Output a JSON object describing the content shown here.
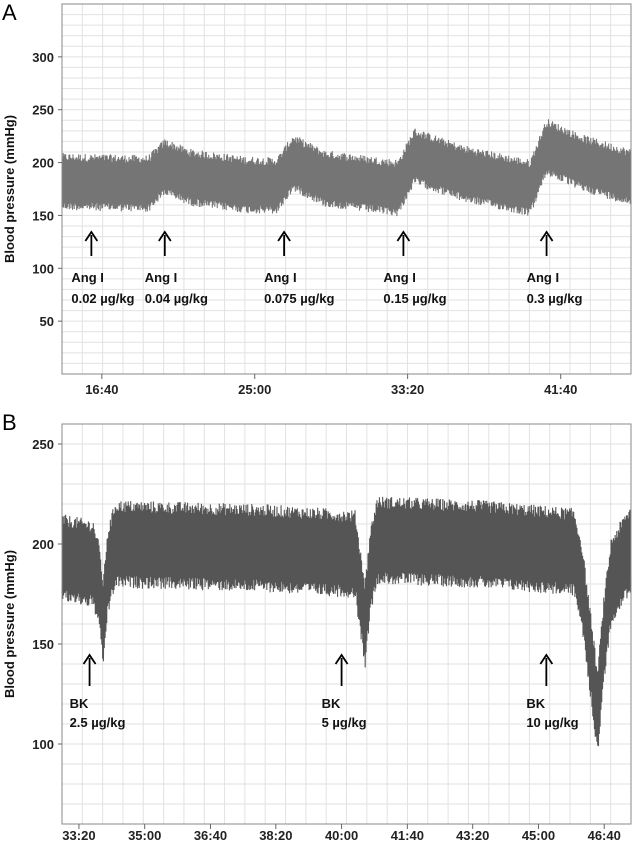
{
  "chart_data": [
    {
      "panel_label": "A",
      "type": "line",
      "ylabel": "Blood pressure  (mmHg)",
      "ylim": [
        0,
        350
      ],
      "yticks": [
        50,
        100,
        150,
        200,
        250,
        300
      ],
      "xlabels": [
        "16:40",
        "25:00",
        "33:20",
        "41:40"
      ],
      "xlabel_pos": [
        16.67,
        25.0,
        33.33,
        41.67
      ],
      "xlim": [
        14.5,
        45.5
      ],
      "grid": true,
      "series_color": "#757575",
      "baseline": [
        {
          "x": 14.5,
          "y": 182
        },
        {
          "x": 19.2,
          "y": 180
        },
        {
          "x": 20.1,
          "y": 196
        },
        {
          "x": 21.5,
          "y": 186
        },
        {
          "x": 24.5,
          "y": 179
        },
        {
          "x": 26.2,
          "y": 178
        },
        {
          "x": 27.1,
          "y": 200
        },
        {
          "x": 28.8,
          "y": 185
        },
        {
          "x": 32.8,
          "y": 176
        },
        {
          "x": 33.7,
          "y": 206
        },
        {
          "x": 36.3,
          "y": 190
        },
        {
          "x": 40.0,
          "y": 176
        },
        {
          "x": 40.9,
          "y": 215
        },
        {
          "x": 42.8,
          "y": 200
        },
        {
          "x": 45.5,
          "y": 186
        }
      ],
      "band_half_width": 27,
      "annotations": [
        {
          "x": 16.1,
          "label": "Ang I",
          "dose": "0.02 µg/kg"
        },
        {
          "x": 20.1,
          "label": "Ang I",
          "dose": "0.04 µg/kg"
        },
        {
          "x": 26.6,
          "label": "Ang I",
          "dose": "0.075 µg/kg"
        },
        {
          "x": 33.1,
          "label": "Ang I",
          "dose": "0.15 µg/kg"
        },
        {
          "x": 40.9,
          "label": "Ang I",
          "dose": "0.3 µg/kg"
        }
      ]
    },
    {
      "panel_label": "B",
      "type": "line",
      "ylabel": "Blood pressure  (mmHg)",
      "ylim": [
        60,
        260
      ],
      "yticks": [
        100,
        150,
        200,
        250
      ],
      "xlabels": [
        "33:20",
        "35:00",
        "36:40",
        "38:20",
        "40:00",
        "41:40",
        "43:20",
        "45:00",
        "46:40"
      ],
      "xlabel_pos": [
        33.33,
        35.0,
        36.67,
        38.33,
        40.0,
        41.67,
        43.33,
        45.0,
        46.67
      ],
      "xlim": [
        32.9,
        47.35
      ],
      "grid": true,
      "series_color": "#555555",
      "baseline": [
        {
          "x": 32.9,
          "y": 193
        },
        {
          "x": 33.7,
          "y": 190
        },
        {
          "x": 33.85,
          "y": 178
        },
        {
          "x": 33.95,
          "y": 160
        },
        {
          "x": 34.05,
          "y": 185
        },
        {
          "x": 34.25,
          "y": 200
        },
        {
          "x": 38.0,
          "y": 198
        },
        {
          "x": 40.35,
          "y": 195
        },
        {
          "x": 40.45,
          "y": 180
        },
        {
          "x": 40.6,
          "y": 160
        },
        {
          "x": 40.72,
          "y": 185
        },
        {
          "x": 40.9,
          "y": 202
        },
        {
          "x": 43.5,
          "y": 200
        },
        {
          "x": 45.9,
          "y": 196
        },
        {
          "x": 46.1,
          "y": 180
        },
        {
          "x": 46.35,
          "y": 140
        },
        {
          "x": 46.5,
          "y": 115
        },
        {
          "x": 46.65,
          "y": 150
        },
        {
          "x": 46.85,
          "y": 182
        },
        {
          "x": 47.35,
          "y": 198
        }
      ],
      "band_half_width": 22,
      "annotations": [
        {
          "x": 33.6,
          "label": "BK",
          "dose": "2.5  µg/kg"
        },
        {
          "x": 40.0,
          "label": "BK",
          "dose": "5 µg/kg"
        },
        {
          "x": 45.2,
          "label": "BK",
          "dose": "10 µg/kg"
        }
      ]
    }
  ]
}
